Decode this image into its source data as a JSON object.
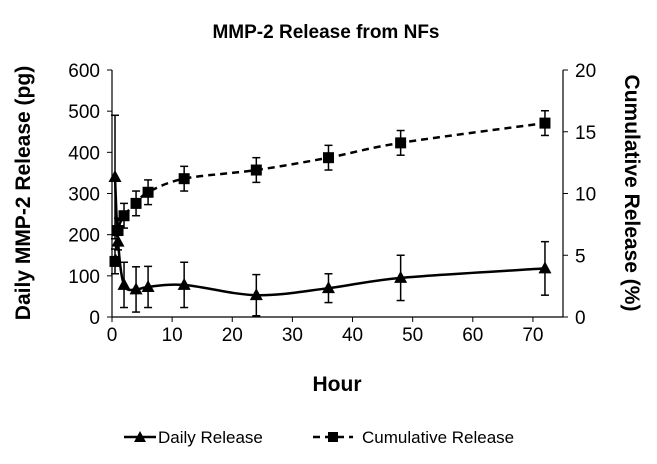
{
  "chart_data": {
    "type": "line",
    "title": "MMP-2 Release from NFs",
    "xlabel": "Hour",
    "ylabel": "Daily MMP-2 Release (pg)",
    "y2label": "Cumulative Release (%)",
    "xlim": [
      0,
      75
    ],
    "ylim": [
      0,
      600
    ],
    "y2lim": [
      0,
      20
    ],
    "xticks": [
      "0",
      "10",
      "20",
      "30",
      "40",
      "50",
      "60",
      "70"
    ],
    "yticks": [
      "0",
      "100",
      "200",
      "300",
      "400",
      "500",
      "600"
    ],
    "y2ticks": [
      "0",
      "5",
      "10",
      "15",
      "20"
    ],
    "grid": false,
    "legend_position": "bottom",
    "series": [
      {
        "name": "Daily Release",
        "axis": "left",
        "marker": "triangle",
        "line_style": "solid",
        "color": "#000000",
        "x": [
          0.5,
          1,
          2,
          4,
          6,
          12,
          24,
          36,
          48,
          72
        ],
        "y": [
          340,
          183,
          78,
          67,
          73,
          78,
          53,
          70,
          95,
          118
        ],
        "error": [
          150,
          20,
          55,
          55,
          50,
          55,
          50,
          35,
          55,
          65
        ]
      },
      {
        "name": "Cumulative Release",
        "axis": "right",
        "marker": "square",
        "line_style": "dashed",
        "color": "#000000",
        "x": [
          0.5,
          1,
          2,
          4,
          6,
          12,
          24,
          36,
          48,
          72
        ],
        "y": [
          4.5,
          7.0,
          8.2,
          9.2,
          10.1,
          11.2,
          11.9,
          12.9,
          14.1,
          15.7
        ],
        "error": [
          1.0,
          1.0,
          1.0,
          1.0,
          1.0,
          1.0,
          1.0,
          1.0,
          1.0,
          1.0
        ]
      }
    ]
  }
}
